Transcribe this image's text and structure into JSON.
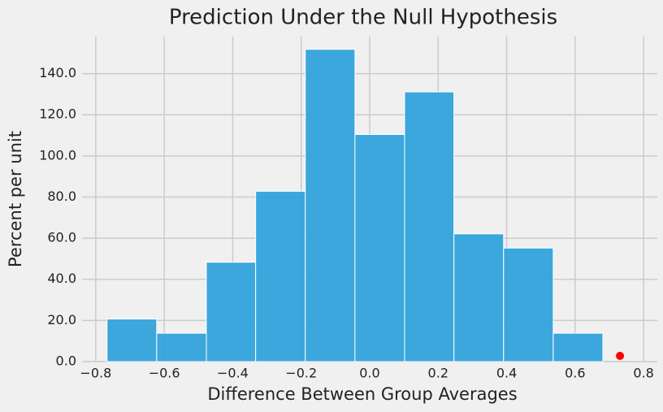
{
  "chart_data": {
    "type": "histogram",
    "title": "Prediction Under the Null Hypothesis",
    "xlabel": "Difference Between Group Averages",
    "ylabel": "Percent per unit",
    "bins": [
      -0.767,
      -0.622,
      -0.477,
      -0.333,
      -0.188,
      -0.043,
      0.102,
      0.246,
      0.391,
      0.536,
      0.681
    ],
    "values": [
      20.7,
      13.8,
      48.3,
      82.8,
      151.8,
      110.4,
      131.1,
      62.1,
      55.2,
      13.8
    ],
    "color": "#30a2da",
    "point": {
      "x": 0.731,
      "y": 2.8,
      "color": "#ff0000"
    },
    "xlim": [
      -0.84,
      0.84
    ],
    "ylim": [
      0,
      158
    ],
    "xticks": [
      {
        "value": -0.8,
        "label": "−0.8"
      },
      {
        "value": -0.6,
        "label": "−0.6"
      },
      {
        "value": -0.4,
        "label": "−0.4"
      },
      {
        "value": -0.2,
        "label": "−0.2"
      },
      {
        "value": 0,
        "label": "0.0"
      },
      0.2,
      0.4,
      0.6,
      0.8
    ],
    "yticks": [
      {
        "value": 0,
        "label": "0.0"
      },
      {
        "value": 20,
        "label": "20.0"
      },
      {
        "value": 40,
        "label": "40.0"
      },
      {
        "value": 60,
        "label": "60.0"
      },
      {
        "value": 80,
        "label": "80.0"
      },
      {
        "value": 100,
        "label": "100.0"
      },
      {
        "value": 120,
        "label": "120.0"
      },
      {
        "value": 140,
        "label": "140.0"
      }
    ],
    "grid": true
  }
}
